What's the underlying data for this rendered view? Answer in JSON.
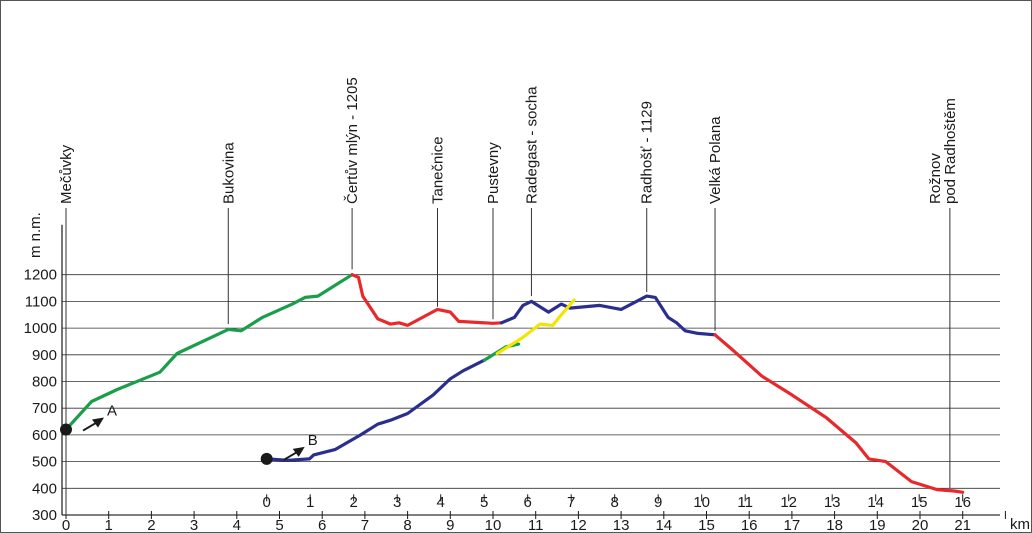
{
  "chart_data": {
    "type": "line",
    "ylabel": "m n.m.",
    "xunit": "km",
    "ylim": [
      300,
      1200
    ],
    "yticks": [
      300,
      400,
      500,
      600,
      700,
      800,
      900,
      1000,
      1100,
      1200
    ],
    "x_main_ticks": [
      0,
      1,
      2,
      3,
      4,
      5,
      6,
      7,
      8,
      9,
      10,
      11,
      12,
      13,
      14,
      15,
      16,
      17,
      18,
      19,
      20,
      21
    ],
    "x_b_ticks": [
      0,
      1,
      2,
      3,
      4,
      5,
      6,
      7,
      8,
      9,
      10,
      11,
      12,
      13,
      14,
      15,
      16
    ],
    "x_b_offset_km": 4.7,
    "colors": {
      "green": "#1a9e4a",
      "red": "#e8282b",
      "blue": "#2a2f8f",
      "yellow": "#f2e600",
      "axis": "#1a1a1a"
    },
    "start_points": [
      {
        "label": "A",
        "x": 0,
        "y": 620
      },
      {
        "label": "B",
        "x": 4.7,
        "y": 510
      }
    ],
    "places": [
      {
        "name": "Mečůvky",
        "x": 0,
        "y": 620
      },
      {
        "name": "Bukovina",
        "x": 3.8,
        "y": 1000
      },
      {
        "name": "Čertův mlýn - 1205",
        "x": 6.7,
        "y": 1205
      },
      {
        "name": "Tanečnice",
        "x": 8.7,
        "y": 1065
      },
      {
        "name": "Pustevny",
        "x": 10.0,
        "y": 1018
      },
      {
        "name": "Radegast - socha",
        "x": 10.9,
        "y": 1105
      },
      {
        "name": "Radhošť - 1129",
        "x": 13.6,
        "y": 1120
      },
      {
        "name": "Velká Polana",
        "x": 15.2,
        "y": 975
      },
      {
        "name": "Rožnov\npod Radhoštěm",
        "x": 20.7,
        "y": 385
      }
    ],
    "series": [
      {
        "color": "green",
        "points": [
          [
            0,
            620
          ],
          [
            0.6,
            725
          ],
          [
            1.2,
            770
          ],
          [
            2.2,
            835
          ],
          [
            2.6,
            905
          ],
          [
            3.8,
            995
          ],
          [
            4.1,
            990
          ],
          [
            4.6,
            1040
          ],
          [
            5.3,
            1090
          ],
          [
            5.6,
            1115
          ],
          [
            5.9,
            1120
          ],
          [
            6.3,
            1160
          ],
          [
            6.7,
            1200
          ]
        ]
      },
      {
        "color": "red",
        "points": [
          [
            6.7,
            1200
          ],
          [
            6.85,
            1190
          ],
          [
            6.95,
            1120
          ],
          [
            7.3,
            1035
          ],
          [
            7.6,
            1015
          ],
          [
            7.8,
            1020
          ],
          [
            8.0,
            1010
          ],
          [
            8.7,
            1070
          ],
          [
            9.0,
            1060
          ],
          [
            9.2,
            1025
          ],
          [
            10.0,
            1018
          ],
          [
            10.2,
            1020
          ]
        ]
      },
      {
        "color": "blue",
        "points": [
          [
            10.2,
            1020
          ],
          [
            10.5,
            1040
          ],
          [
            10.7,
            1085
          ],
          [
            10.9,
            1100
          ],
          [
            11.3,
            1060
          ],
          [
            11.6,
            1090
          ],
          [
            11.8,
            1075
          ],
          [
            12.5,
            1085
          ],
          [
            13.0,
            1070
          ],
          [
            13.6,
            1120
          ],
          [
            13.8,
            1115
          ],
          [
            14.1,
            1040
          ],
          [
            14.3,
            1020
          ],
          [
            14.5,
            990
          ],
          [
            14.8,
            980
          ],
          [
            15.2,
            975
          ]
        ]
      },
      {
        "color": "red",
        "points": [
          [
            15.2,
            975
          ],
          [
            15.6,
            920
          ],
          [
            16.3,
            820
          ],
          [
            17.0,
            750
          ],
          [
            17.8,
            665
          ],
          [
            18.5,
            570
          ],
          [
            18.8,
            510
          ],
          [
            19.2,
            500
          ],
          [
            19.8,
            425
          ],
          [
            20.4,
            395
          ],
          [
            20.8,
            390
          ],
          [
            21.0,
            385
          ]
        ]
      },
      {
        "color": "blue",
        "points": [
          [
            4.7,
            510
          ],
          [
            5.2,
            505
          ],
          [
            5.7,
            510
          ],
          [
            5.8,
            525
          ],
          [
            6.3,
            545
          ],
          [
            6.9,
            600
          ],
          [
            7.3,
            640
          ],
          [
            7.6,
            655
          ],
          [
            8.0,
            680
          ],
          [
            8.6,
            750
          ],
          [
            9.0,
            810
          ],
          [
            9.3,
            840
          ],
          [
            9.8,
            880
          ]
        ]
      },
      {
        "color": "green",
        "points": [
          [
            9.8,
            880
          ],
          [
            10.3,
            930
          ],
          [
            10.6,
            940
          ]
        ]
      },
      {
        "color": "yellow",
        "points": [
          [
            10.1,
            905
          ],
          [
            10.7,
            965
          ],
          [
            11.1,
            1015
          ],
          [
            11.4,
            1010
          ],
          [
            11.6,
            1050
          ],
          [
            11.9,
            1105
          ]
        ]
      }
    ]
  }
}
